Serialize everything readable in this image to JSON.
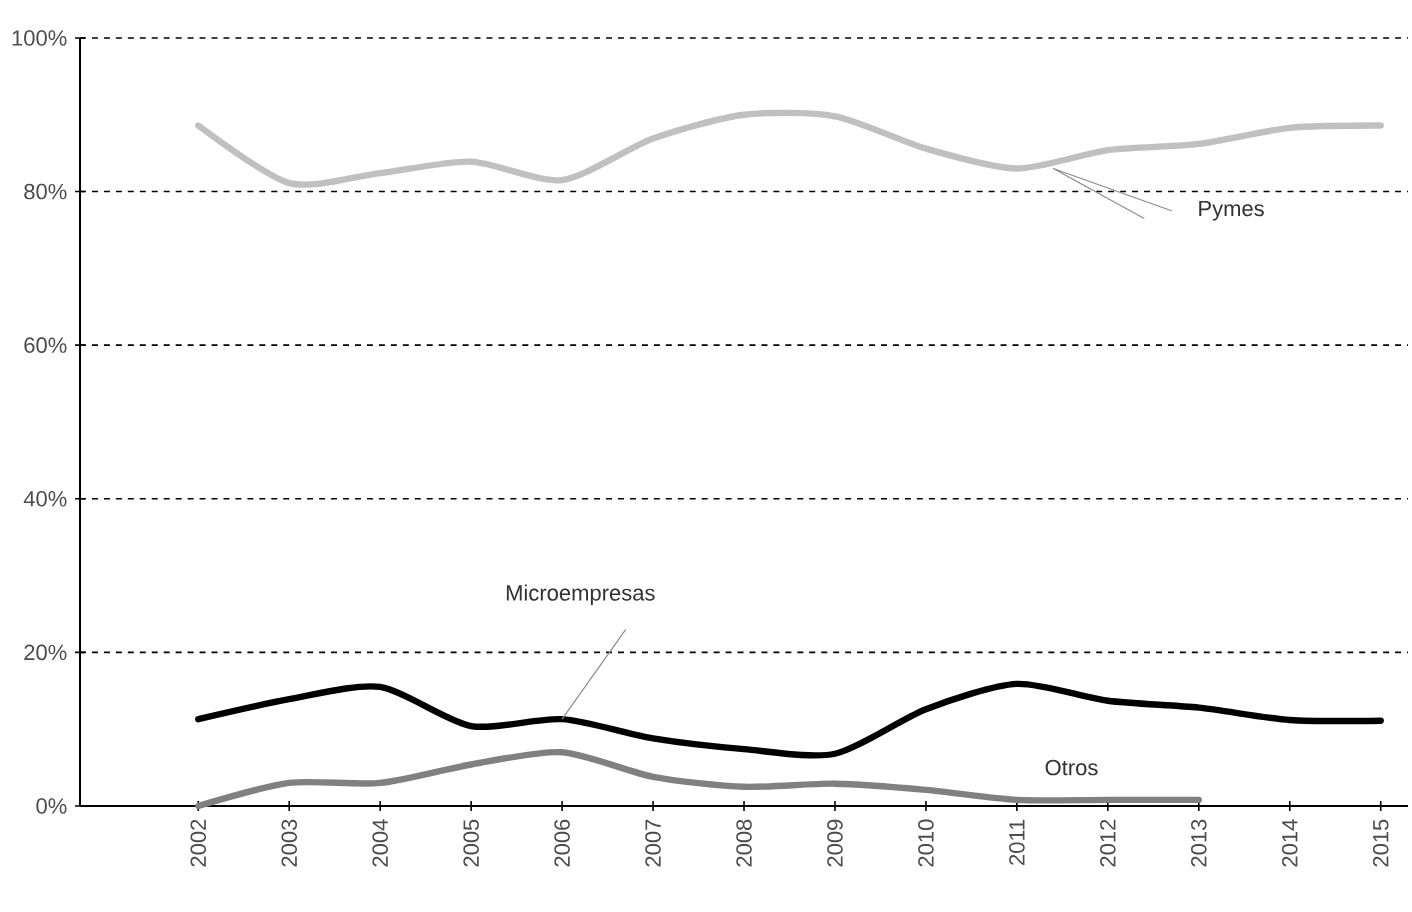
{
  "chart_data": {
    "type": "line",
    "categories": [
      "2002",
      "2003",
      "2004",
      "2005",
      "2006",
      "2007",
      "2008",
      "2009",
      "2010",
      "2011",
      "2012",
      "2013",
      "2014",
      "2015"
    ],
    "series": [
      {
        "name": "Pymes",
        "color": "#c0c0c0",
        "values": [
          88.6,
          81.1,
          82.4,
          83.9,
          81.5,
          86.9,
          90.0,
          89.8,
          85.6,
          83.0,
          85.4,
          86.2,
          88.3,
          88.6
        ]
      },
      {
        "name": "Microempresas",
        "color": "#000000",
        "values": [
          11.3,
          13.9,
          15.5,
          10.4,
          11.3,
          8.8,
          7.4,
          6.8,
          12.6,
          15.9,
          13.7,
          12.8,
          11.2,
          11.1
        ]
      },
      {
        "name": "Otros",
        "color": "#808080",
        "values": [
          0,
          3.0,
          3.0,
          5.4,
          7.0,
          3.8,
          2.5,
          2.9,
          2.1,
          0.8,
          0.8,
          0.8,
          null,
          null
        ]
      }
    ],
    "ylim": [
      0,
      100
    ],
    "yticks": [
      {
        "value": 0,
        "label": "0%"
      },
      {
        "value": 20,
        "label": "20%"
      },
      {
        "value": 40,
        "label": "40%"
      },
      {
        "value": 60,
        "label": "60%"
      },
      {
        "value": 80,
        "label": "80%"
      },
      {
        "value": 100,
        "label": "100%"
      }
    ],
    "grid": "y",
    "legend": false,
    "marker": "none",
    "line_style": "solid"
  }
}
